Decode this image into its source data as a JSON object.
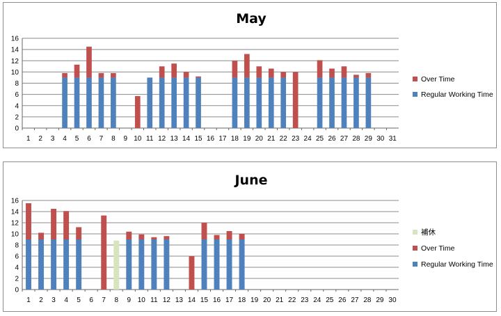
{
  "chart_data": [
    {
      "type": "bar",
      "stacked": true,
      "title": "May",
      "categories": [
        "1",
        "2",
        "3",
        "4",
        "5",
        "6",
        "7",
        "8",
        "9",
        "10",
        "11",
        "12",
        "13",
        "14",
        "15",
        "16",
        "17",
        "18",
        "19",
        "20",
        "21",
        "22",
        "23",
        "24",
        "25",
        "26",
        "27",
        "28",
        "29",
        "30",
        "31"
      ],
      "ylim": [
        0,
        16
      ],
      "yticks": [
        0,
        2,
        4,
        6,
        8,
        10,
        12,
        14,
        16
      ],
      "grid": true,
      "legend_position": "right",
      "series": [
        {
          "name": "Regular Working Time",
          "color": "#4f81bd",
          "values": [
            0,
            0,
            0,
            9,
            9,
            9,
            9,
            9,
            0,
            0,
            9,
            9,
            9,
            9,
            9,
            0,
            0,
            9,
            9,
            9,
            9,
            9,
            0,
            0,
            9,
            9,
            9,
            9,
            9,
            0,
            0
          ]
        },
        {
          "name": "Over Time",
          "color": "#c0504d",
          "values": [
            0,
            0,
            0,
            0.8,
            2.3,
            5.5,
            0.8,
            0.8,
            0,
            5.7,
            0,
            2,
            2.5,
            1,
            0.2,
            0,
            0,
            3,
            4.2,
            2,
            1.6,
            1,
            10,
            0,
            3.1,
            1.6,
            2,
            0.5,
            0.8,
            0,
            0
          ]
        }
      ]
    },
    {
      "type": "bar",
      "stacked": true,
      "title": "June",
      "categories": [
        "1",
        "2",
        "3",
        "4",
        "5",
        "6",
        "7",
        "8",
        "9",
        "10",
        "11",
        "12",
        "13",
        "14",
        "15",
        "16",
        "17",
        "18",
        "19",
        "20",
        "21",
        "22",
        "23",
        "24",
        "25",
        "26",
        "27",
        "28",
        "29",
        "30"
      ],
      "ylim": [
        0,
        16
      ],
      "yticks": [
        0,
        2,
        4,
        6,
        8,
        10,
        12,
        14,
        16
      ],
      "grid": true,
      "legend_position": "right",
      "series": [
        {
          "name": "Regular Working Time",
          "color": "#4f81bd",
          "values": [
            9,
            9,
            9,
            9,
            9,
            0,
            0,
            0,
            9,
            9,
            9,
            9,
            0,
            0,
            9,
            9,
            9,
            9,
            0,
            0,
            0,
            0,
            0,
            0,
            0,
            0,
            0,
            0,
            0,
            0
          ]
        },
        {
          "name": "Over Time",
          "color": "#c0504d",
          "values": [
            6.5,
            1.2,
            5.5,
            5.1,
            2.2,
            0,
            13.3,
            0,
            1.4,
            0.9,
            0.4,
            0.6,
            0,
            6,
            3,
            0.8,
            1.5,
            1,
            0,
            0,
            0,
            0,
            0,
            0,
            0,
            0,
            0,
            0,
            0,
            0
          ]
        },
        {
          "name": "補休",
          "color": "#d7e4bd",
          "values": [
            0,
            0,
            0,
            0,
            0,
            0,
            0,
            8.8,
            0,
            0,
            0,
            0,
            0,
            0,
            0,
            0,
            0,
            0,
            0,
            0,
            0,
            0,
            0,
            0,
            0,
            0,
            0,
            0,
            0,
            0
          ]
        }
      ]
    }
  ]
}
